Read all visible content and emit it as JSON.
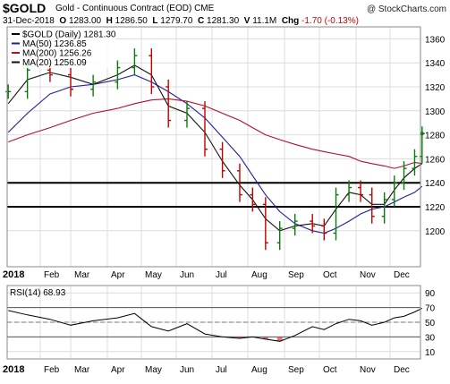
{
  "header": {
    "symbol": "$GOLD",
    "name": "Gold - Continuous Contract (EOD)",
    "exchange": "CME",
    "watermark": "@ StockCharts.com",
    "date": "31-Dec-2018",
    "open_label": "O",
    "open": "1283.00",
    "high_label": "H",
    "high": "1286.50",
    "low_label": "L",
    "low": "1279.70",
    "close_label": "C",
    "close": "1281.30",
    "volume_label": "V",
    "volume": "11.1M",
    "change_label": "Chg",
    "change": "-1.70 (-0.13%)"
  },
  "legend": [
    {
      "text": "$GOLD (Daily) 1281.30",
      "color": "#000000"
    },
    {
      "text": "MA(50) 1236.85",
      "color": "#1f1f9c"
    },
    {
      "text": "MA(200) 1256.26",
      "color": "#b01030"
    },
    {
      "text": "MA(20) 1256.09",
      "color": "#111111"
    }
  ],
  "rsi_label": "RSI(14) 68.93",
  "chart_data": [
    {
      "type": "ohlc",
      "x": [
        "Jan 2",
        "Jan 20",
        "Feb 10",
        "Mar 1",
        "Mar 20",
        "Apr 10",
        "Apr 25",
        "May 10",
        "May 25",
        "Jun 10",
        "Jun 25",
        "Jul 10",
        "Jul 25",
        "Aug 5",
        "Aug 16",
        "Aug 28",
        "Sep 10",
        "Sep 25",
        "Oct 5",
        "Oct 15",
        "Oct 26",
        "Nov 5",
        "Nov 15",
        "Nov 26",
        "Dec 5",
        "Dec 14",
        "Dec 24",
        "Dec 31"
      ],
      "series": [
        {
          "name": "$GOLD (Daily)",
          "values": [
            1316,
            1334,
            1330,
            1318,
            1324,
            1336,
            1346,
            1320,
            1292,
            1302,
            1268,
            1250,
            1230,
            1222,
            1190,
            1202,
            1208,
            1204,
            1198,
            1230,
            1236,
            1230,
            1212,
            1226,
            1240,
            1252,
            1262,
            1281
          ]
        },
        {
          "name": "MA(50)",
          "values": [
            1282,
            1298,
            1314,
            1320,
            1322,
            1326,
            1330,
            1324,
            1316,
            1306,
            1294,
            1278,
            1262,
            1246,
            1230,
            1216,
            1206,
            1200,
            1198,
            1202,
            1208,
            1214,
            1218,
            1220,
            1224,
            1228,
            1232,
            1237
          ]
        },
        {
          "name": "MA(200)",
          "values": [
            1274,
            1280,
            1286,
            1292,
            1298,
            1302,
            1306,
            1309,
            1310,
            1308,
            1304,
            1298,
            1292,
            1286,
            1280,
            1276,
            1272,
            1268,
            1266,
            1264,
            1262,
            1258,
            1256,
            1254,
            1252,
            1254,
            1257,
            1256
          ]
        },
        {
          "name": "MA(20)",
          "values": [
            1306,
            1326,
            1332,
            1328,
            1322,
            1330,
            1338,
            1330,
            1304,
            1298,
            1282,
            1258,
            1238,
            1226,
            1210,
            1200,
            1204,
            1206,
            1204,
            1218,
            1232,
            1230,
            1222,
            1222,
            1234,
            1244,
            1252,
            1256
          ]
        }
      ],
      "horizontal_lines": [
        1240,
        1220
      ],
      "ylim": [
        1170,
        1370
      ],
      "yticks": [
        1200,
        1220,
        1240,
        1260,
        1280,
        1300,
        1320,
        1340,
        1360
      ],
      "xticks": [
        "2018",
        "Feb",
        "Mar",
        "Apr",
        "May",
        "Jun",
        "Jul",
        "Aug",
        "Sep",
        "Oct",
        "Nov",
        "Dec"
      ],
      "grid": true,
      "legend_position": "top-left"
    },
    {
      "type": "line",
      "title": "RSI(14) 68.93",
      "x": [
        "Jan 2",
        "Jan 20",
        "Feb 10",
        "Mar 1",
        "Mar 20",
        "Apr 10",
        "Apr 25",
        "May 10",
        "May 25",
        "Jun 10",
        "Jun 25",
        "Jul 10",
        "Jul 25",
        "Aug 5",
        "Aug 16",
        "Aug 28",
        "Sep 10",
        "Sep 25",
        "Oct 5",
        "Oct 15",
        "Oct 26",
        "Nov 5",
        "Nov 15",
        "Nov 26",
        "Dec 5",
        "Dec 14",
        "Dec 24",
        "Dec 31"
      ],
      "series": [
        {
          "name": "RSI(14)",
          "values": [
            66,
            60,
            54,
            46,
            52,
            56,
            62,
            44,
            38,
            48,
            34,
            30,
            28,
            30,
            27,
            24,
            32,
            44,
            40,
            48,
            54,
            52,
            46,
            50,
            56,
            58,
            64,
            69
          ]
        }
      ],
      "reference_lines": [
        70,
        50,
        30
      ],
      "ylim": [
        0,
        100
      ],
      "yticks": [
        10,
        30,
        50,
        70,
        90
      ],
      "xticks": [
        "2018",
        "Feb",
        "Mar",
        "Apr",
        "May",
        "Jun",
        "Jul",
        "Aug",
        "Sep",
        "Oct",
        "Nov",
        "Dec"
      ],
      "grid": true
    }
  ]
}
